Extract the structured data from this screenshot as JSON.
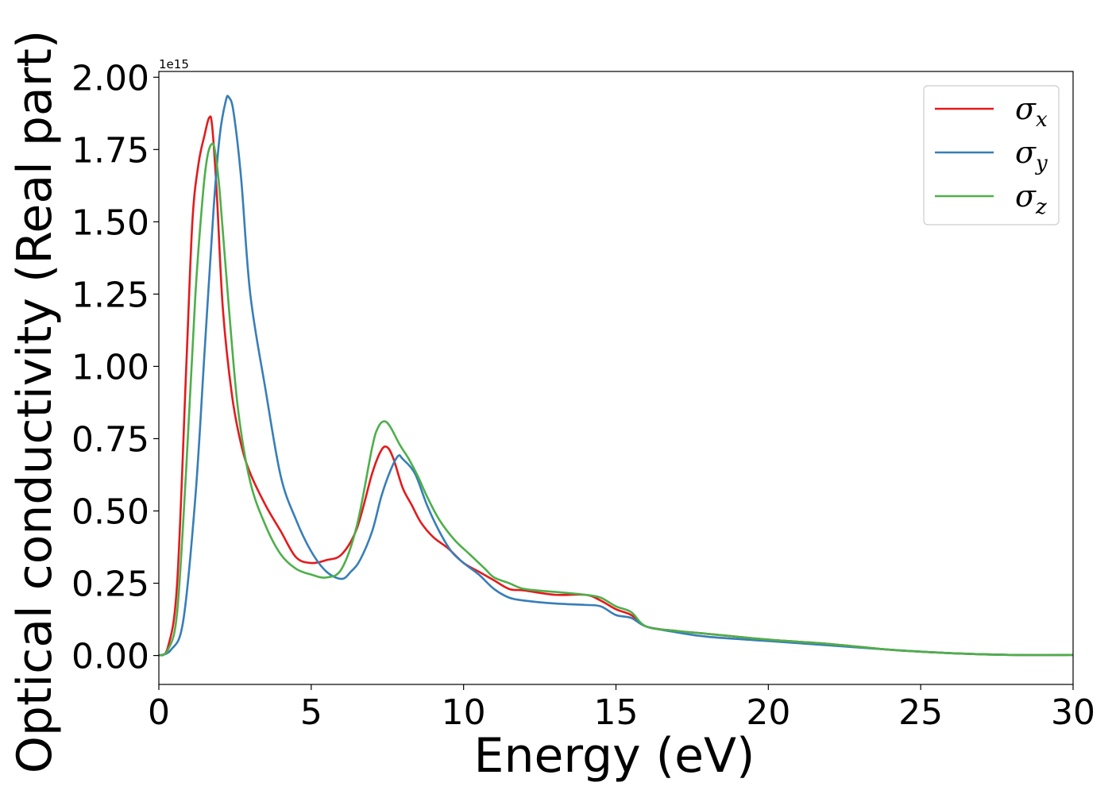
{
  "chart_data": {
    "type": "line",
    "xlabel": "Energy (eV)",
    "ylabel": "Optical conductivity (Real part)",
    "y_offset_label": "1e15",
    "xlim": [
      0,
      30
    ],
    "ylim": [
      -0.1,
      2.02
    ],
    "xticks": [
      0,
      5,
      10,
      15,
      20,
      25,
      30
    ],
    "xtick_labels": [
      "0",
      "5",
      "10",
      "15",
      "20",
      "25",
      "30"
    ],
    "yticks": [
      0.0,
      0.25,
      0.5,
      0.75,
      1.0,
      1.25,
      1.5,
      1.75,
      2.0
    ],
    "ytick_labels": [
      "0.00",
      "0.25",
      "0.50",
      "0.75",
      "1.00",
      "1.25",
      "1.50",
      "1.75",
      "2.00"
    ],
    "grid": false,
    "legend_position": "top-right",
    "series": [
      {
        "name": "σx",
        "symbol": "σ",
        "subscript": "x",
        "color": "#e41a1c",
        "x": [
          0,
          0.3,
          0.6,
          0.9,
          1.1,
          1.3,
          1.5,
          1.65,
          1.75,
          1.9,
          2.1,
          2.4,
          2.7,
          3.0,
          3.5,
          4.0,
          4.5,
          5.0,
          5.5,
          6.0,
          6.5,
          7.0,
          7.3,
          7.5,
          7.7,
          8.0,
          8.3,
          8.6,
          9.0,
          9.5,
          10.0,
          10.5,
          11.0,
          11.5,
          12.0,
          13.0,
          14.0,
          14.5,
          15.0,
          15.5,
          16.0,
          17.0,
          18.0,
          20.0,
          22.0,
          24.0,
          26.0,
          28.0,
          30.0
        ],
        "y": [
          0.0,
          0.03,
          0.25,
          1.0,
          1.5,
          1.7,
          1.8,
          1.86,
          1.83,
          1.6,
          1.2,
          0.9,
          0.73,
          0.63,
          0.52,
          0.43,
          0.34,
          0.32,
          0.33,
          0.35,
          0.44,
          0.63,
          0.71,
          0.72,
          0.68,
          0.58,
          0.52,
          0.46,
          0.41,
          0.37,
          0.32,
          0.29,
          0.26,
          0.23,
          0.225,
          0.21,
          0.21,
          0.19,
          0.16,
          0.14,
          0.1,
          0.085,
          0.075,
          0.055,
          0.04,
          0.02,
          0.008,
          0.002,
          0.002
        ]
      },
      {
        "name": "σy",
        "symbol": "σ",
        "subscript": "y",
        "color": "#377eb8",
        "x": [
          0,
          0.4,
          0.8,
          1.2,
          1.5,
          1.8,
          2.0,
          2.2,
          2.3,
          2.45,
          2.7,
          3.0,
          3.5,
          4.0,
          4.5,
          5.0,
          5.5,
          6.0,
          6.3,
          6.6,
          7.0,
          7.3,
          7.6,
          7.85,
          8.0,
          8.4,
          8.8,
          9.2,
          9.6,
          10.0,
          10.5,
          11.0,
          11.5,
          12.0,
          13.0,
          14.0,
          14.5,
          15.0,
          15.5,
          16.0,
          17.0,
          18.0,
          20.0,
          22.0,
          24.0,
          26.0,
          28.0,
          30.0
        ],
        "y": [
          0.0,
          0.02,
          0.12,
          0.55,
          1.05,
          1.55,
          1.8,
          1.92,
          1.93,
          1.88,
          1.65,
          1.25,
          0.92,
          0.62,
          0.47,
          0.36,
          0.29,
          0.265,
          0.29,
          0.33,
          0.43,
          0.55,
          0.64,
          0.69,
          0.68,
          0.63,
          0.52,
          0.43,
          0.36,
          0.32,
          0.28,
          0.23,
          0.2,
          0.19,
          0.18,
          0.175,
          0.17,
          0.14,
          0.13,
          0.1,
          0.08,
          0.065,
          0.05,
          0.035,
          0.02,
          0.008,
          0.002,
          0.002
        ]
      },
      {
        "name": "σz",
        "symbol": "σ",
        "subscript": "z",
        "color": "#4daf4a",
        "x": [
          0,
          0.3,
          0.6,
          0.9,
          1.2,
          1.45,
          1.6,
          1.75,
          1.85,
          2.0,
          2.3,
          2.6,
          3.0,
          3.5,
          4.0,
          4.5,
          5.0,
          5.5,
          6.0,
          6.5,
          7.0,
          7.2,
          7.4,
          7.6,
          7.9,
          8.2,
          8.5,
          8.8,
          9.2,
          9.7,
          10.2,
          10.7,
          11.0,
          11.5,
          12.0,
          13.0,
          14.0,
          14.5,
          15.0,
          15.5,
          16.0,
          17.0,
          18.0,
          20.0,
          22.0,
          24.0,
          26.0,
          28.0,
          30.0
        ],
        "y": [
          0.0,
          0.02,
          0.15,
          0.65,
          1.25,
          1.6,
          1.73,
          1.77,
          1.74,
          1.6,
          1.2,
          0.85,
          0.6,
          0.45,
          0.35,
          0.3,
          0.28,
          0.27,
          0.3,
          0.45,
          0.72,
          0.79,
          0.81,
          0.79,
          0.73,
          0.68,
          0.62,
          0.55,
          0.47,
          0.4,
          0.35,
          0.3,
          0.27,
          0.25,
          0.23,
          0.22,
          0.21,
          0.2,
          0.17,
          0.15,
          0.1,
          0.085,
          0.075,
          0.055,
          0.04,
          0.02,
          0.008,
          0.002,
          0.002
        ]
      }
    ]
  }
}
